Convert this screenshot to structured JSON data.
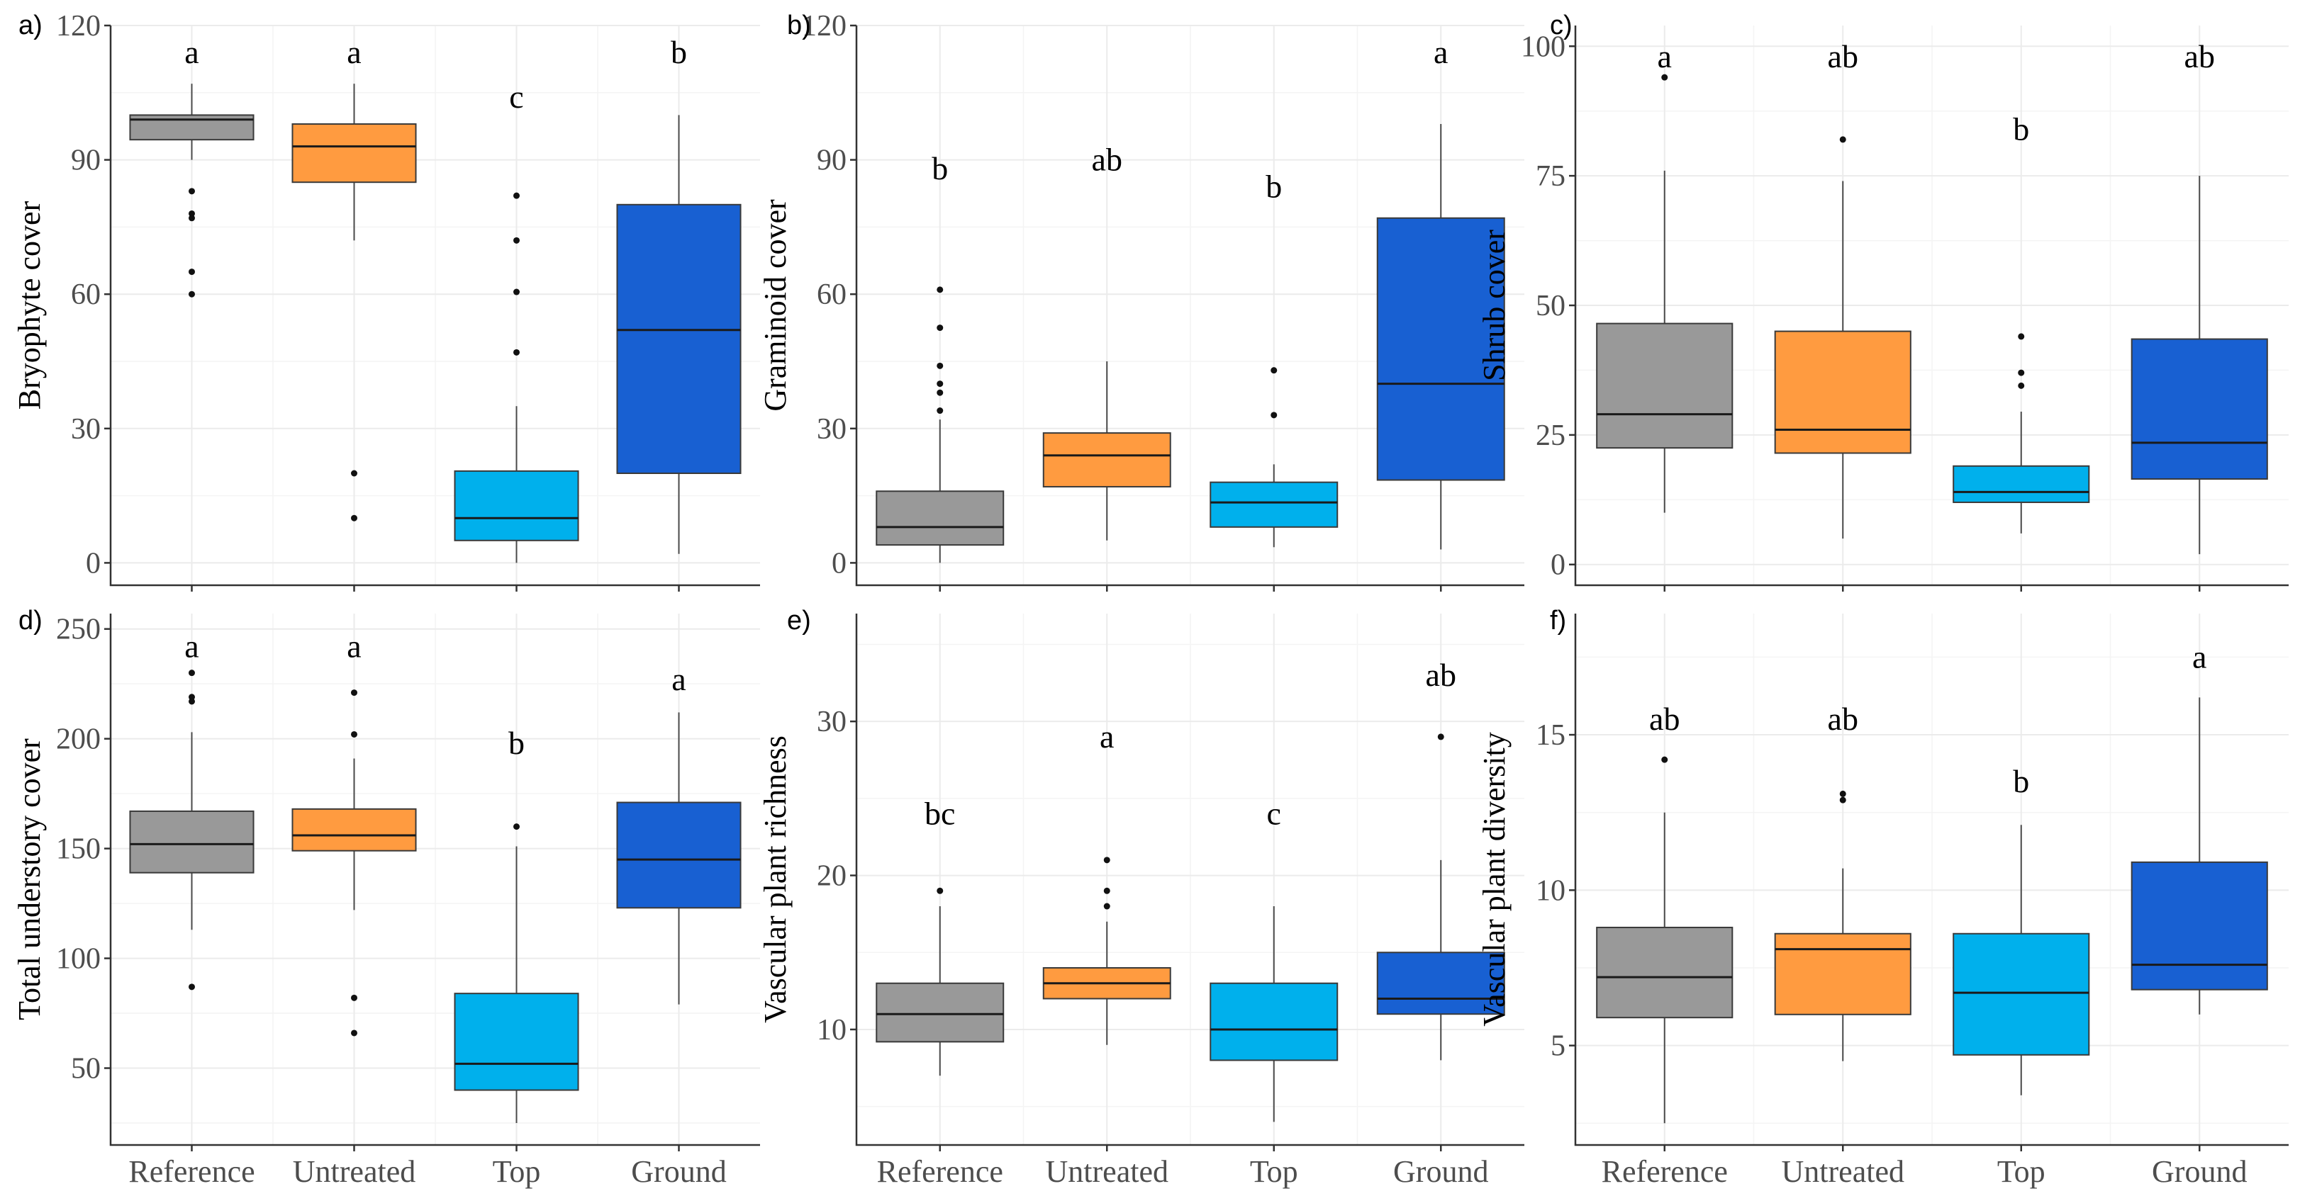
{
  "categories": [
    "Reference",
    "Untreated",
    "Top",
    "Ground"
  ],
  "colors": {
    "Reference": "#999999",
    "Untreated": "#FF9B40",
    "Top": "#00B0EC",
    "Ground": "#1860D2"
  },
  "chart_data": [
    {
      "type": "box",
      "panel": "a)",
      "ylabel": "Bryophyte cover",
      "ylim": [
        -5,
        120
      ],
      "yticks": [
        "0",
        "30",
        "60",
        "90",
        "120"
      ],
      "ytick_values": [
        0,
        30,
        60,
        90,
        120
      ],
      "letters": [
        "a",
        "a",
        "c",
        "b"
      ],
      "letter_y": [
        114,
        114,
        104,
        114
      ],
      "boxes": [
        {
          "category": "Reference",
          "whisker_low": 90,
          "q1": 94.5,
          "median": 99,
          "q3": 100,
          "whisker_high": 107,
          "outliers": [
            83,
            78,
            77,
            65,
            60
          ]
        },
        {
          "category": "Untreated",
          "whisker_low": 72,
          "q1": 85,
          "median": 93,
          "q3": 98,
          "whisker_high": 107,
          "outliers": [
            20,
            10
          ]
        },
        {
          "category": "Top",
          "whisker_low": 0,
          "q1": 5,
          "median": 10,
          "q3": 20.5,
          "whisker_high": 35,
          "outliers": [
            82,
            72,
            60.5,
            47
          ]
        },
        {
          "category": "Ground",
          "whisker_low": 2,
          "q1": 20,
          "median": 52,
          "q3": 80,
          "whisker_high": 100,
          "outliers": []
        }
      ]
    },
    {
      "type": "box",
      "panel": "b)",
      "ylabel": "Graminoid cover",
      "ylim": [
        -5,
        120
      ],
      "yticks": [
        "0",
        "30",
        "60",
        "90",
        "120"
      ],
      "ytick_values": [
        0,
        30,
        60,
        90,
        120
      ],
      "letters": [
        "b",
        "ab",
        "b",
        "a"
      ],
      "letter_y": [
        88,
        90,
        84,
        114
      ],
      "boxes": [
        {
          "category": "Reference",
          "whisker_low": 0,
          "q1": 4,
          "median": 8,
          "q3": 16,
          "whisker_high": 32,
          "outliers": [
            61,
            52.5,
            44,
            40,
            38,
            34
          ]
        },
        {
          "category": "Untreated",
          "whisker_low": 5,
          "q1": 17,
          "median": 24,
          "q3": 29,
          "whisker_high": 45,
          "outliers": []
        },
        {
          "category": "Top",
          "whisker_low": 3.5,
          "q1": 8,
          "median": 13.5,
          "q3": 18,
          "whisker_high": 22,
          "outliers": [
            43,
            33
          ]
        },
        {
          "category": "Ground",
          "whisker_low": 3,
          "q1": 18.5,
          "median": 40,
          "q3": 77,
          "whisker_high": 98,
          "outliers": []
        }
      ]
    },
    {
      "type": "box",
      "panel": "c)",
      "ylabel": "Shrub cover",
      "ylim": [
        -4,
        104
      ],
      "yticks": [
        "0",
        "25",
        "50",
        "75",
        "100"
      ],
      "ytick_values": [
        0,
        25,
        50,
        75,
        100
      ],
      "letters": [
        "a",
        "ab",
        "b",
        "ab"
      ],
      "letter_y": [
        98,
        98,
        84,
        98
      ],
      "boxes": [
        {
          "category": "Reference",
          "whisker_low": 10,
          "q1": 22.5,
          "median": 29,
          "q3": 46.5,
          "whisker_high": 76,
          "outliers": [
            94
          ]
        },
        {
          "category": "Untreated",
          "whisker_low": 5,
          "q1": 21.5,
          "median": 26,
          "q3": 45,
          "whisker_high": 74,
          "outliers": [
            82
          ]
        },
        {
          "category": "Top",
          "whisker_low": 6,
          "q1": 12,
          "median": 14,
          "q3": 19,
          "whisker_high": 29.5,
          "outliers": [
            44,
            37,
            34.5
          ]
        },
        {
          "category": "Ground",
          "whisker_low": 2,
          "q1": 16.5,
          "median": 23.5,
          "q3": 43.5,
          "whisker_high": 75,
          "outliers": []
        }
      ]
    },
    {
      "type": "box",
      "panel": "d)",
      "ylabel": "Total understory cover",
      "ylim": [
        15,
        257
      ],
      "yticks": [
        "50",
        "100",
        "150",
        "200",
        "250"
      ],
      "ytick_values": [
        50,
        100,
        150,
        200,
        250
      ],
      "letters": [
        "a",
        "a",
        "b",
        "a"
      ],
      "letter_y": [
        242,
        242,
        198,
        227
      ],
      "boxes": [
        {
          "category": "Reference",
          "whisker_low": 113,
          "q1": 139,
          "median": 152,
          "q3": 167,
          "whisker_high": 203,
          "outliers": [
            230,
            219,
            217,
            87
          ]
        },
        {
          "category": "Untreated",
          "whisker_low": 122,
          "q1": 149,
          "median": 156,
          "q3": 168,
          "whisker_high": 191,
          "outliers": [
            221,
            202,
            82,
            66
          ]
        },
        {
          "category": "Top",
          "whisker_low": 25,
          "q1": 40,
          "median": 52,
          "q3": 84,
          "whisker_high": 151,
          "outliers": [
            160
          ]
        },
        {
          "category": "Ground",
          "whisker_low": 79,
          "q1": 123,
          "median": 145,
          "q3": 171,
          "whisker_high": 212,
          "outliers": []
        }
      ]
    },
    {
      "type": "box",
      "panel": "e)",
      "ylabel": "Vascular plant richness",
      "ylim": [
        2.5,
        37
      ],
      "yticks": [
        "10",
        "20",
        "30"
      ],
      "ytick_values": [
        10,
        20,
        30
      ],
      "letters": [
        "bc",
        "a",
        "c",
        "ab"
      ],
      "letter_y": [
        24,
        29,
        24,
        33
      ],
      "boxes": [
        {
          "category": "Reference",
          "whisker_low": 7,
          "q1": 9.2,
          "median": 11,
          "q3": 13,
          "whisker_high": 18,
          "outliers": [
            19
          ]
        },
        {
          "category": "Untreated",
          "whisker_low": 9,
          "q1": 12,
          "median": 13,
          "q3": 14,
          "whisker_high": 17,
          "outliers": [
            21,
            19,
            18
          ]
        },
        {
          "category": "Top",
          "whisker_low": 4,
          "q1": 8,
          "median": 10,
          "q3": 13,
          "whisker_high": 18,
          "outliers": []
        },
        {
          "category": "Ground",
          "whisker_low": 8,
          "q1": 11,
          "median": 12,
          "q3": 15,
          "whisker_high": 21,
          "outliers": [
            29
          ]
        }
      ]
    },
    {
      "type": "box",
      "panel": "f)",
      "ylabel": "Vascular plant diversity",
      "ylim": [
        1.8,
        18.9
      ],
      "yticks": [
        "5",
        "10",
        "15"
      ],
      "ytick_values": [
        5,
        10,
        15
      ],
      "letters": [
        "ab",
        "ab",
        "b",
        "a"
      ],
      "letter_y": [
        15.5,
        15.5,
        13.5,
        17.5
      ],
      "boxes": [
        {
          "category": "Reference",
          "whisker_low": 2.5,
          "q1": 5.9,
          "median": 7.2,
          "q3": 8.8,
          "whisker_high": 12.5,
          "outliers": [
            14.2
          ]
        },
        {
          "category": "Untreated",
          "whisker_low": 4.5,
          "q1": 6,
          "median": 8.1,
          "q3": 8.6,
          "whisker_high": 10.7,
          "outliers": [
            13.1,
            12.9
          ]
        },
        {
          "category": "Top",
          "whisker_low": 3.4,
          "q1": 4.7,
          "median": 6.7,
          "q3": 8.6,
          "whisker_high": 12.1,
          "outliers": []
        },
        {
          "category": "Ground",
          "whisker_low": 6,
          "q1": 6.8,
          "median": 7.6,
          "q3": 10.9,
          "whisker_high": 16.2,
          "outliers": []
        }
      ]
    }
  ]
}
